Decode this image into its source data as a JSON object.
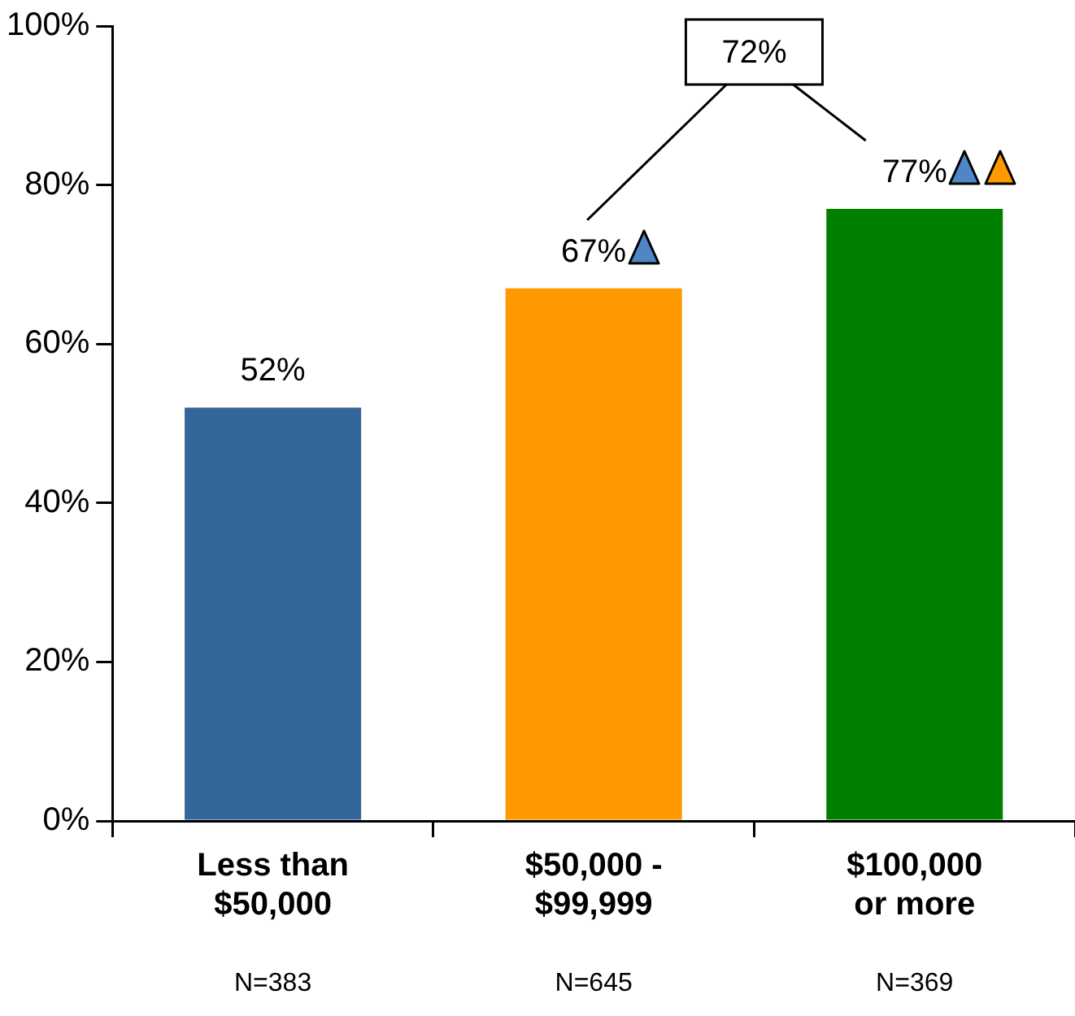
{
  "chart_data": {
    "type": "bar",
    "categories": [
      "Less than $50,000",
      "$50,000 - $99,999",
      "$100,000 or more"
    ],
    "values": [
      52,
      67,
      77
    ],
    "value_labels": [
      "52%",
      "67%",
      "77%"
    ],
    "colors": [
      "#336699",
      "#ff9900",
      "#008000"
    ],
    "ylim": [
      0,
      100
    ],
    "yticks": [
      {
        "value": 0,
        "label": "0%"
      },
      {
        "value": 20,
        "label": "20%"
      },
      {
        "value": 40,
        "label": "40%"
      },
      {
        "value": 60,
        "label": "60%"
      },
      {
        "value": 80,
        "label": "80%"
      },
      {
        "value": 100,
        "label": "100%"
      }
    ],
    "annotations": [
      "N=383",
      "N=645",
      "N=369",
      "72%"
    ],
    "grid": false,
    "legend": false
  }
}
